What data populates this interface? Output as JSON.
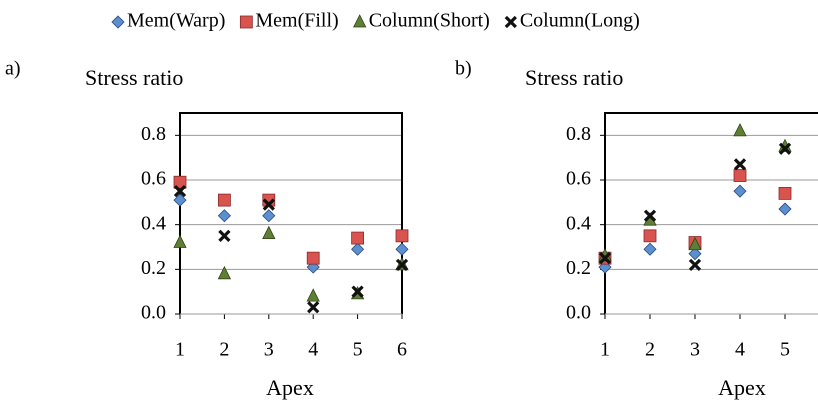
{
  "chart_data": [
    {
      "type": "scatter",
      "label": "a)",
      "ylabel": "Stress ratio",
      "xlabel": "Apex",
      "x": [
        1,
        2,
        3,
        4,
        5,
        6
      ],
      "xlim": [
        1,
        6
      ],
      "xticks": [
        1,
        2,
        3,
        4,
        5,
        6
      ],
      "ylim": [
        0,
        0.9
      ],
      "yticks": [
        {
          "value": 0,
          "label": "0.0"
        },
        0.2,
        0.4,
        0.6,
        0.8
      ],
      "grid": true,
      "series": [
        {
          "name": "Mem(Warp)",
          "color": "#5b8fd0",
          "marker": "diamond",
          "values": [
            0.51,
            0.44,
            0.44,
            0.21,
            0.29,
            0.29
          ]
        },
        {
          "name": "Mem(Fill)",
          "color": "#d9534f",
          "marker": "square",
          "values": [
            0.59,
            0.51,
            0.51,
            0.25,
            0.34,
            0.35
          ]
        },
        {
          "name": "Column(Short)",
          "color": "#5f7f35",
          "marker": "triangle",
          "values": [
            0.32,
            0.18,
            0.36,
            0.08,
            0.09,
            0.22
          ]
        },
        {
          "name": "Column(Long)",
          "color": "#111111",
          "marker": "x",
          "values": [
            0.55,
            0.35,
            0.49,
            0.03,
            0.1,
            0.22
          ]
        }
      ]
    },
    {
      "type": "scatter",
      "label": "b)",
      "ylabel": "Stress ratio",
      "xlabel": "Apex",
      "x": [
        1,
        2,
        3,
        4,
        5
      ],
      "xlim": [
        1,
        6
      ],
      "xticks": [
        1,
        2,
        3,
        4,
        5
      ],
      "ylim": [
        0,
        0.9
      ],
      "yticks": [
        {
          "value": 0,
          "label": "0.0"
        },
        0.2,
        0.4,
        0.6,
        0.8
      ],
      "grid": true,
      "series": [
        {
          "color": "#5b8fd0",
          "marker": "diamond",
          "values": [
            0.21,
            0.29,
            0.27,
            0.55,
            0.47
          ]
        },
        {
          "color": "#d9534f",
          "marker": "square",
          "values": [
            0.25,
            0.35,
            0.32,
            0.62,
            0.54
          ]
        },
        {
          "color": "#5f7f35",
          "marker": "triangle",
          "values": [
            0.26,
            0.42,
            0.31,
            0.82,
            0.75
          ]
        },
        {
          "color": "#111111",
          "marker": "x",
          "values": [
            0.25,
            0.44,
            0.22,
            0.67,
            0.74
          ]
        }
      ]
    }
  ]
}
